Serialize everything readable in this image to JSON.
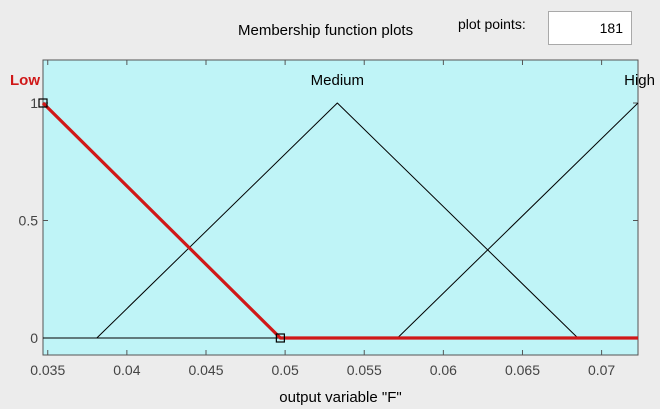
{
  "header": {
    "title": "Membership function plots",
    "plot_points_label": "plot points:",
    "plot_points_value": "181"
  },
  "colors": {
    "plot_background": "#bff4f7",
    "panel_background": "#ececec",
    "selected_function": "#d01818",
    "function_line": "#000000"
  },
  "chart_data": {
    "type": "line",
    "title": "",
    "xlabel": "output variable \"F\"",
    "ylabel": "",
    "xlim": [
      0.0347,
      0.0723
    ],
    "ylim": [
      0,
      1
    ],
    "x_ticks": [
      "0.035",
      "0.04",
      "0.045",
      "0.05",
      "0.055",
      "0.06",
      "0.065",
      "0.07"
    ],
    "x_tick_values": [
      0.035,
      0.04,
      0.045,
      0.05,
      0.055,
      0.06,
      0.065,
      0.07
    ],
    "y_ticks": [
      "0",
      "0.5",
      "1"
    ],
    "y_tick_values": [
      0,
      0.5,
      1
    ],
    "grid": false,
    "series": [
      {
        "name": "Low",
        "selected": true,
        "x": [
          0.0347,
          0.0497,
          0.0723
        ],
        "y": [
          1,
          0,
          0
        ]
      },
      {
        "name": "Medium",
        "selected": false,
        "x": [
          0.0381,
          0.0533,
          0.0685
        ],
        "y": [
          0,
          1,
          0
        ]
      },
      {
        "name": "High",
        "selected": false,
        "x": [
          0.0571,
          0.0723
        ],
        "y": [
          0,
          1
        ]
      }
    ]
  }
}
